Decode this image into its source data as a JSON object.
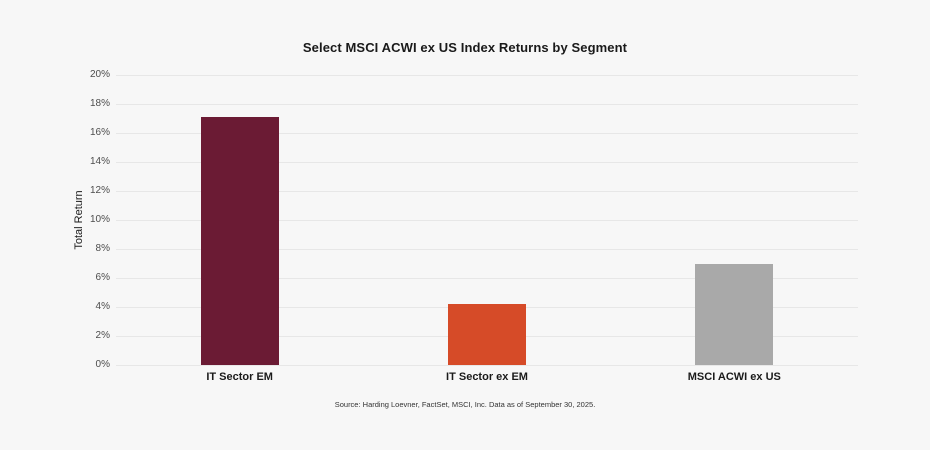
{
  "page": {
    "background_color": "#f7f7f7"
  },
  "chart_data": {
    "type": "bar",
    "title": "Select MSCI ACWI ex US Index Returns by Segment",
    "xlabel": "",
    "ylabel": "Total Return",
    "categories": [
      "IT Sector EM",
      "IT Sector ex EM",
      "MSCI ACWI ex US"
    ],
    "values": [
      17.1,
      4.2,
      7.0
    ],
    "bar_colors": [
      "#6b1b34",
      "#d64b28",
      "#a9a9a9"
    ],
    "ylim": [
      0,
      20
    ],
    "ytick_step": 2,
    "ytick_suffix": "%",
    "grid": true,
    "gridline_color": "#e7e7e7",
    "legend_position": "none",
    "source_note": "Source: Harding Loevner, FactSet, MSCI, Inc. Data as of September 30, 2025."
  }
}
